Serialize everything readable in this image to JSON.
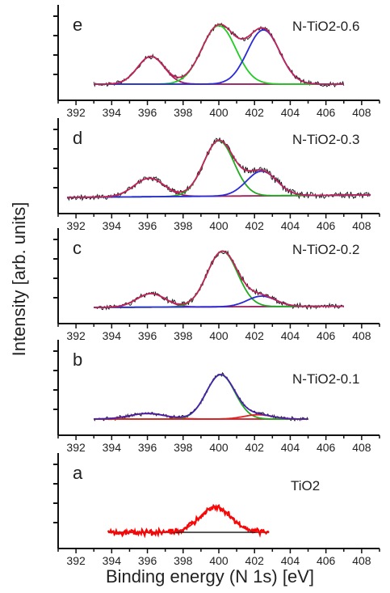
{
  "figure": {
    "ylabel": "Intensity [arb. units]",
    "xlabel": "Binding energy (N 1s) [eV]"
  },
  "chart_data": [
    {
      "type": "line",
      "panel": "e",
      "label": "N-TiO2-0.6",
      "xlim": [
        391,
        409
      ],
      "xticks": [
        392,
        394,
        396,
        398,
        400,
        402,
        404,
        406,
        408
      ],
      "ylim": [
        0,
        1.05
      ],
      "data_range": [
        393.0,
        407.0
      ],
      "baseline": [
        0.0,
        0.0
      ],
      "peaks": [
        {
          "center": 396.2,
          "height": 0.45,
          "width": 0.75
        },
        {
          "center": 400.0,
          "height": 0.95,
          "width": 0.95
        },
        {
          "center": 402.5,
          "height": 0.88,
          "width": 0.9
        }
      ],
      "noise": 0.03,
      "colors": {
        "raw": "#111111",
        "baseline": "#2a2ad8",
        "envelope": "#c0245a",
        "components": [
          "#a0205a",
          "#22cc22",
          "#2a2ad8"
        ]
      }
    },
    {
      "type": "line",
      "panel": "d",
      "label": "N-TiO2-0.3",
      "xlim": [
        391,
        409
      ],
      "xticks": [
        392,
        394,
        396,
        398,
        400,
        402,
        404,
        406,
        408
      ],
      "ylim": [
        0,
        1.05
      ],
      "data_range": [
        391.5,
        408.5
      ],
      "baseline": [
        0.0,
        0.04
      ],
      "peaks": [
        {
          "center": 396.1,
          "height": 0.3,
          "width": 0.85
        },
        {
          "center": 400.0,
          "height": 0.9,
          "width": 0.85
        },
        {
          "center": 402.4,
          "height": 0.4,
          "width": 0.85
        }
      ],
      "noise": 0.045,
      "colors": {
        "raw": "#111111",
        "baseline": "#a0205a",
        "envelope": "#c0245a",
        "components": [
          "#a0205a",
          "#22aa22",
          "#2a2ad8"
        ]
      }
    },
    {
      "type": "line",
      "panel": "c",
      "label": "N-TiO2-0.2",
      "xlim": [
        391,
        409
      ],
      "xticks": [
        392,
        394,
        396,
        398,
        400,
        402,
        404,
        406,
        408
      ],
      "ylim": [
        0,
        1.05
      ],
      "data_range": [
        393.0,
        407.0
      ],
      "baseline": [
        0.0,
        0.02
      ],
      "peaks": [
        {
          "center": 396.2,
          "height": 0.22,
          "width": 0.8
        },
        {
          "center": 400.2,
          "height": 0.9,
          "width": 0.85
        },
        {
          "center": 402.4,
          "height": 0.17,
          "width": 0.8
        }
      ],
      "noise": 0.035,
      "colors": {
        "raw": "#111111",
        "baseline": "#2a2ad8",
        "envelope": "#c0245a",
        "components": [
          "#a0205a",
          "#22aa22",
          "#2a2ad8"
        ]
      }
    },
    {
      "type": "line",
      "panel": "b",
      "label": "N-TiO2-0.1",
      "xlim": [
        391,
        409
      ],
      "xticks": [
        392,
        394,
        396,
        398,
        400,
        402,
        404,
        406,
        408
      ],
      "ylim": [
        0,
        1.05
      ],
      "data_range": [
        393.0,
        405.0
      ],
      "baseline": [
        0.0,
        0.0
      ],
      "peaks": [
        {
          "center": 396.0,
          "height": 0.09,
          "width": 1.0
        },
        {
          "center": 400.1,
          "height": 0.72,
          "width": 0.8
        },
        {
          "center": 402.2,
          "height": 0.07,
          "width": 0.8
        }
      ],
      "noise": 0.025,
      "colors": {
        "raw": "#111111",
        "baseline": "#2a2ad8",
        "envelope": "#4a1fb0",
        "components": [
          "#dd2222",
          "#22aa22",
          "#dd2222"
        ]
      }
    },
    {
      "type": "line",
      "panel": "a",
      "label": "TiO2",
      "xlim": [
        391,
        409
      ],
      "xticks": [
        392,
        394,
        396,
        398,
        400,
        402,
        404,
        406,
        408
      ],
      "ylim": [
        0,
        1.05
      ],
      "data_range": [
        393.8,
        402.8
      ],
      "baseline": [
        0.0,
        0.0
      ],
      "peaks": [
        {
          "center": 399.8,
          "height": 0.42,
          "width": 0.85
        }
      ],
      "noise": 0.04,
      "colors": {
        "raw": "#ff0000",
        "baseline": "#222222",
        "envelope": "#ee1111",
        "components": []
      }
    }
  ]
}
